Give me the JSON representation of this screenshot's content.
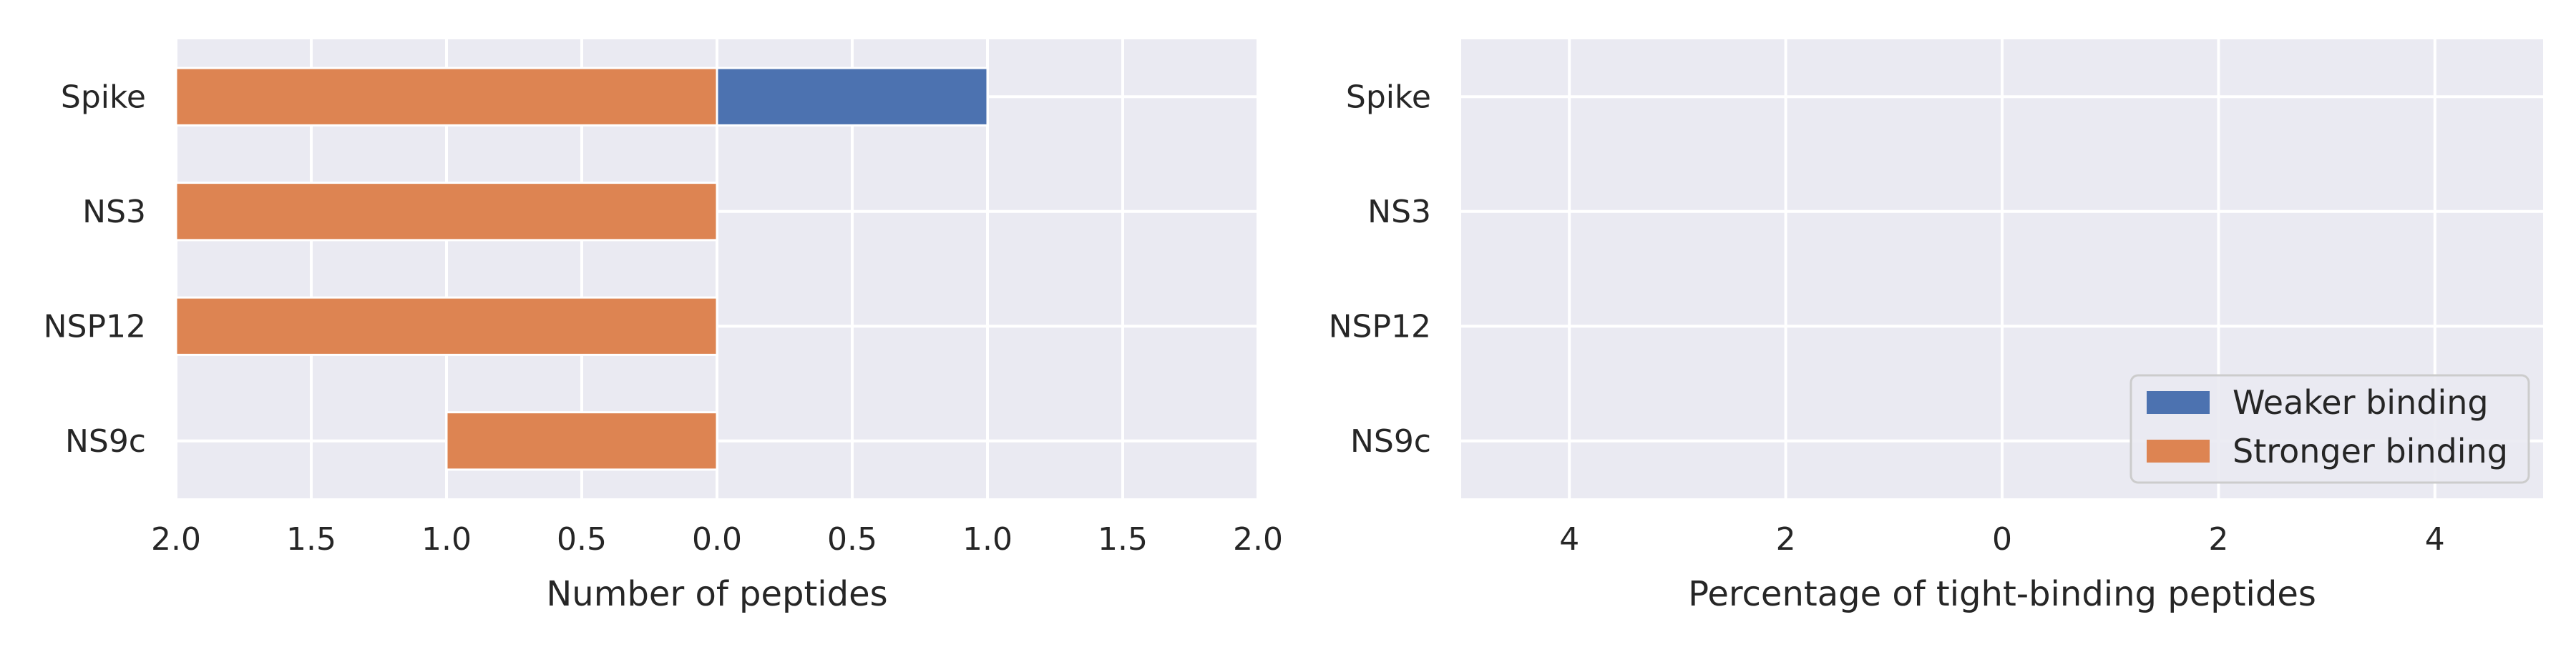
{
  "chart_data": [
    {
      "type": "bar",
      "orientation": "horizontal",
      "categories": [
        "Spike",
        "NS3",
        "NSP12",
        "NS9c"
      ],
      "series": [
        {
          "name": "Weaker binding",
          "values": [
            1,
            0,
            0,
            0
          ]
        },
        {
          "name": "Stronger binding",
          "values": [
            -2,
            -2,
            -2,
            -1
          ]
        }
      ],
      "xlabel": "Number of peptides",
      "xlim": [
        -2,
        2
      ],
      "xticks": [
        -2,
        -1.5,
        -1,
        -0.5,
        0,
        0.5,
        1,
        1.5,
        2
      ],
      "xtick_labels": [
        "2.0",
        "1.5",
        "1.0",
        "0.5",
        "0.0",
        "0.5",
        "1.0",
        "1.5",
        "2.0"
      ],
      "grid": true,
      "colors": {
        "Weaker binding": "#4c72b0",
        "Stronger binding": "#dd8452"
      }
    },
    {
      "type": "bar",
      "orientation": "horizontal",
      "categories": [
        "Spike",
        "NS3",
        "NSP12",
        "NS9c"
      ],
      "series": [
        {
          "name": "Weaker binding",
          "values": [
            0,
            0,
            0,
            0
          ]
        },
        {
          "name": "Stronger binding",
          "values": [
            0,
            0,
            0,
            0
          ]
        }
      ],
      "xlabel": "Percentage of tight-binding peptides",
      "xlim": [
        -5,
        5
      ],
      "xticks": [
        -4,
        -2,
        0,
        2,
        4
      ],
      "xtick_labels": [
        "4",
        "2",
        "0",
        "2",
        "4"
      ],
      "grid": true,
      "legend": {
        "position": "lower-right",
        "entries": [
          {
            "label": "Weaker binding",
            "color": "#4c72b0"
          },
          {
            "label": "Stronger binding",
            "color": "#dd8452"
          }
        ]
      }
    }
  ],
  "theme": {
    "background": "#eaeaf2",
    "grid": "#ffffff"
  }
}
